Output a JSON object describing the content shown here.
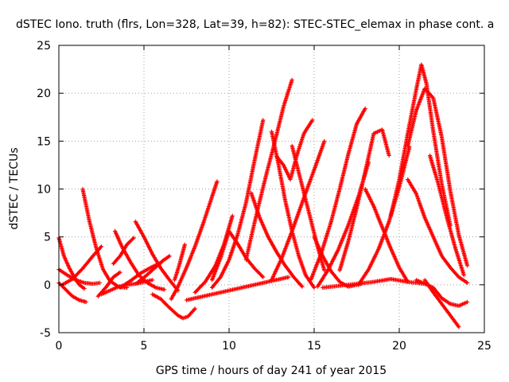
{
  "chart_data": {
    "type": "scatter",
    "title": "dSTEC Iono. truth (flrs, Lon=328, Lat=39, h=82): STEC-STEC_elemax in phase cont. a",
    "xlabel": "GPS time / hours of day 241 of year 2015",
    "ylabel": "dSTEC  / TECUs",
    "xlim": [
      0,
      25
    ],
    "ylim": [
      -5,
      25
    ],
    "xticks": [
      0,
      5,
      10,
      15,
      20,
      25
    ],
    "yticks": [
      -5,
      0,
      5,
      10,
      15,
      20,
      25
    ],
    "grid": true,
    "marker": "plus",
    "color": "#ff0000",
    "series": [
      {
        "x": [
          0.0,
          0.3,
          0.6,
          0.9,
          1.2,
          1.5
        ],
        "y": [
          4.9,
          3.0,
          1.8,
          0.8,
          0.0,
          -0.4
        ]
      },
      {
        "x": [
          0.0,
          0.5,
          1.0,
          1.5,
          2.0,
          2.4
        ],
        "y": [
          1.6,
          1.0,
          0.5,
          0.2,
          0.1,
          0.2
        ]
      },
      {
        "x": [
          0.0,
          0.4,
          0.8,
          1.2,
          1.6
        ],
        "y": [
          0.2,
          -0.5,
          -1.2,
          -1.6,
          -1.8
        ]
      },
      {
        "x": [
          1.4,
          1.8,
          2.2,
          2.6,
          3.0,
          3.5,
          4.0
        ],
        "y": [
          10.0,
          6.6,
          3.8,
          1.6,
          0.4,
          -0.2,
          -0.3
        ]
      },
      {
        "x": [
          0.2,
          0.8,
          1.4,
          2.0,
          2.5
        ],
        "y": [
          0.0,
          0.6,
          1.7,
          3.0,
          4.0
        ]
      },
      {
        "x": [
          2.5,
          3.0,
          3.5,
          4.0,
          4.5,
          5.0,
          5.5
        ],
        "y": [
          -1.0,
          -0.6,
          -0.2,
          0.0,
          0.1,
          0.3,
          0.5
        ]
      },
      {
        "x": [
          2.3,
          2.8,
          3.2,
          3.6
        ],
        "y": [
          -1.2,
          -0.2,
          0.8,
          1.3
        ]
      },
      {
        "x": [
          3.3,
          3.7,
          4.2,
          4.7,
          5.2,
          5.7,
          6.2
        ],
        "y": [
          5.6,
          4.0,
          2.4,
          1.0,
          0.2,
          -0.3,
          -0.5
        ]
      },
      {
        "x": [
          3.2,
          3.6,
          4.0,
          4.4
        ],
        "y": [
          2.2,
          3.0,
          4.2,
          4.9
        ]
      },
      {
        "x": [
          4.5,
          5.0,
          5.5,
          6.0,
          6.5,
          7.0
        ],
        "y": [
          6.6,
          5.0,
          3.2,
          1.7,
          0.5,
          -0.6
        ]
      },
      {
        "x": [
          4.6,
          5.1,
          5.6,
          6.1,
          6.5
        ],
        "y": [
          0.2,
          0.9,
          1.7,
          2.5,
          3.0
        ]
      },
      {
        "x": [
          3.6,
          4.2,
          4.8,
          5.4,
          6.0
        ],
        "y": [
          -0.3,
          0.4,
          1.2,
          1.8,
          2.3
        ]
      },
      {
        "x": [
          5.5,
          6.0,
          6.5,
          7.0,
          7.3,
          7.6,
          8.0
        ],
        "y": [
          -1.0,
          -1.5,
          -2.4,
          -3.2,
          -3.5,
          -3.3,
          -2.5
        ]
      },
      {
        "x": [
          6.6,
          7.0,
          7.5,
          8.0,
          8.5,
          9.0,
          9.3
        ],
        "y": [
          -1.5,
          -0.2,
          1.8,
          4.0,
          6.5,
          9.2,
          10.8
        ]
      },
      {
        "x": [
          6.8,
          7.1,
          7.4
        ],
        "y": [
          0.5,
          2.2,
          4.2
        ]
      },
      {
        "x": [
          7.5,
          8.5,
          9.5,
          10.5,
          11.5,
          12.5,
          13.5
        ],
        "y": [
          -1.6,
          -1.2,
          -0.8,
          -0.4,
          0.0,
          0.4,
          0.8
        ]
      },
      {
        "x": [
          9.0,
          9.5,
          10.0,
          10.5,
          11.0,
          11.5,
          12.0
        ],
        "y": [
          -0.3,
          0.8,
          2.6,
          5.2,
          8.6,
          13.0,
          17.2
        ]
      },
      {
        "x": [
          8.0,
          8.6,
          9.2,
          9.7,
          10.2
        ],
        "y": [
          -0.8,
          0.3,
          2.0,
          4.2,
          7.2
        ]
      },
      {
        "x": [
          9.0,
          9.5,
          10.0,
          10.5,
          11.0,
          11.5,
          12.0
        ],
        "y": [
          0.5,
          2.8,
          5.6,
          4.3,
          2.8,
          1.7,
          0.8
        ]
      },
      {
        "x": [
          11.0,
          11.3,
          11.7,
          12.2,
          12.7,
          13.2,
          13.7
        ],
        "y": [
          2.6,
          5.0,
          8.0,
          11.6,
          15.0,
          18.6,
          21.4
        ]
      },
      {
        "x": [
          12.5,
          12.9,
          13.3,
          13.7,
          14.1,
          14.5,
          15.0
        ],
        "y": [
          16.0,
          12.6,
          8.8,
          5.6,
          3.0,
          1.0,
          -0.3
        ]
      },
      {
        "x": [
          11.3,
          11.8,
          12.3,
          12.8,
          13.3,
          13.8,
          14.3
        ],
        "y": [
          9.6,
          7.0,
          5.0,
          3.4,
          2.0,
          0.8,
          -0.2
        ]
      },
      {
        "x": [
          12.8,
          13.2,
          13.6,
          14.0,
          14.4,
          14.9
        ],
        "y": [
          13.4,
          12.5,
          11.0,
          13.6,
          15.8,
          17.2
        ]
      },
      {
        "x": [
          12.5,
          13.1,
          13.7,
          14.3,
          15.0,
          15.6
        ],
        "y": [
          0.5,
          2.8,
          5.6,
          8.6,
          12.0,
          15.0
        ]
      },
      {
        "x": [
          15.0,
          15.5,
          16.0,
          16.5,
          17.0,
          17.5,
          17.8
        ],
        "y": [
          5.0,
          3.0,
          1.4,
          0.3,
          -0.2,
          0.0,
          0.1
        ]
      },
      {
        "x": [
          13.7,
          14.2,
          14.7,
          15.2,
          15.6
        ],
        "y": [
          14.5,
          11.0,
          7.5,
          4.0,
          1.5
        ]
      },
      {
        "x": [
          14.8,
          15.4,
          16.0,
          16.5,
          17.0,
          17.5,
          18.0
        ],
        "y": [
          0.5,
          3.2,
          6.6,
          10.0,
          13.6,
          16.8,
          18.4
        ]
      },
      {
        "x": [
          15.2,
          15.8,
          16.4,
          17.0,
          17.6,
          18.2
        ],
        "y": [
          -0.2,
          1.5,
          3.6,
          6.2,
          9.2,
          12.8
        ]
      },
      {
        "x": [
          15.5,
          16.5,
          17.5,
          18.5,
          19.5,
          20.5,
          21.5
        ],
        "y": [
          -0.3,
          -0.1,
          0.1,
          0.3,
          0.6,
          0.3,
          0.1
        ]
      },
      {
        "x": [
          16.5,
          17.0,
          17.5,
          18.0,
          18.5,
          19.0,
          19.4
        ],
        "y": [
          1.5,
          4.5,
          8.0,
          11.8,
          15.8,
          16.2,
          13.5
        ]
      },
      {
        "x": [
          18.0,
          18.5,
          19.0,
          19.5,
          20.0,
          20.5
        ],
        "y": [
          10.0,
          8.2,
          6.0,
          3.8,
          1.8,
          0.3
        ]
      },
      {
        "x": [
          17.6,
          18.2,
          18.8,
          19.4,
          20.0,
          20.6
        ],
        "y": [
          0.0,
          1.6,
          3.8,
          6.6,
          10.2,
          14.4
        ]
      },
      {
        "x": [
          19.5,
          20.0,
          20.5,
          21.0,
          21.3,
          21.6,
          22.0,
          22.5,
          23.0
        ],
        "y": [
          7.2,
          11.0,
          15.8,
          20.4,
          23.0,
          21.0,
          16.0,
          10.5,
          6.2
        ]
      },
      {
        "x": [
          20.5,
          21.0,
          21.5,
          22.0,
          22.5,
          23.0,
          23.5,
          24.0
        ],
        "y": [
          14.5,
          18.2,
          20.5,
          19.5,
          15.4,
          9.8,
          5.2,
          2.0
        ]
      },
      {
        "x": [
          20.5,
          21.0,
          21.5,
          22.0,
          22.5,
          23.0,
          23.5,
          24.0
        ],
        "y": [
          11.0,
          9.5,
          7.0,
          5.0,
          3.0,
          1.8,
          0.8,
          0.2
        ]
      },
      {
        "x": [
          21.0,
          21.5,
          22.0,
          22.5,
          23.0,
          23.5,
          24.0
        ],
        "y": [
          0.5,
          0.1,
          -0.3,
          -1.4,
          -2.0,
          -2.2,
          -1.8
        ]
      },
      {
        "x": [
          21.5,
          22.0,
          22.5,
          23.0,
          23.5
        ],
        "y": [
          0.5,
          -0.8,
          -2.0,
          -3.2,
          -4.4
        ]
      },
      {
        "x": [
          21.8,
          22.3,
          22.8,
          23.3,
          23.8
        ],
        "y": [
          13.5,
          10.5,
          7.0,
          3.8,
          1.0
        ]
      }
    ]
  }
}
